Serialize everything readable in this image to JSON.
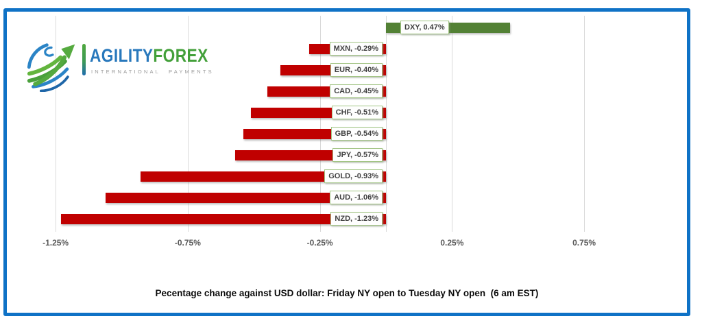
{
  "logo": {
    "brand_primary": "AGILITY",
    "brand_secondary": "FOREX",
    "tagline": "INTERNATIONAL PAYMENTS",
    "colors": {
      "primary_blue": "#2878BC",
      "secondary_green": "#43A03A",
      "tagline_gray": "#9A9A9A"
    }
  },
  "frame": {
    "border_color": "#0F72C6"
  },
  "chart_data": {
    "type": "bar",
    "orientation": "horizontal",
    "title": "Pecentage change against USD dollar: Friday NY open to Tuesday NY open  (6 am EST)",
    "categories": [
      "DXY",
      "MXN",
      "EUR",
      "CAD",
      "CHF",
      "GBP",
      "JPY",
      "GOLD",
      "AUD",
      "NZD"
    ],
    "values": [
      0.47,
      -0.29,
      -0.4,
      -0.45,
      -0.51,
      -0.54,
      -0.57,
      -0.93,
      -1.06,
      -1.23
    ],
    "data_labels": [
      "DXY, 0.47%",
      "MXN, -0.29%",
      "EUR, -0.40%",
      "CAD, -0.45%",
      "CHF, -0.51%",
      "GBP, -0.54%",
      "JPY, -0.57%",
      "GOLD, -0.93%",
      "AUD, -1.06%",
      "NZD, -1.23%"
    ],
    "xlabel": "",
    "ylabel": "",
    "x_ticks": [
      {
        "value": -1.25,
        "label": "-1.25%"
      },
      {
        "value": -0.75,
        "label": "-0.75%"
      },
      {
        "value": -0.25,
        "label": "-0.25%"
      },
      {
        "value": 0.25,
        "label": "0.25%"
      },
      {
        "value": 0.75,
        "label": "0.75%"
      }
    ],
    "x_gridline_values": [
      -1.25,
      -0.75,
      -0.25,
      0,
      0.25,
      0.75
    ],
    "xlim": [
      -1.37,
      1.12
    ],
    "grid": "vertical-on",
    "legend": "none",
    "colors": {
      "positive": "#538135",
      "negative": "#C00000",
      "label_border": "#A3C585",
      "gridline": "#D9D9D9",
      "axis_text": "#595959"
    }
  }
}
